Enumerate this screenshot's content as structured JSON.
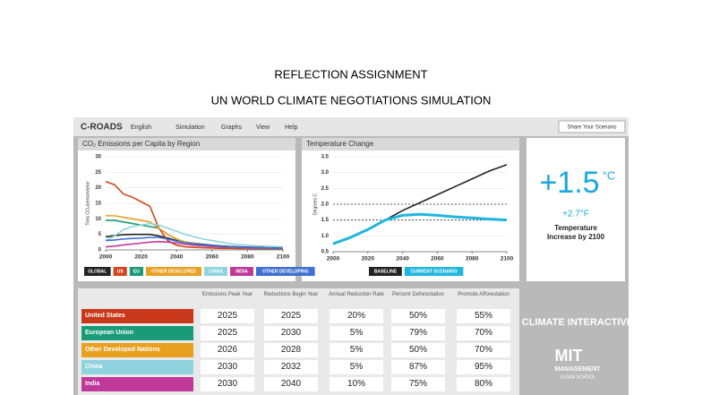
{
  "slide": {
    "title": "REFLECTION ASSIGNMENT",
    "subtitle": "UN WORLD CLIMATE NEGOTIATIONS SIMULATION"
  },
  "toolbar": {
    "app": "C-ROADS",
    "menus": [
      "English",
      "Simulation",
      "Graphs",
      "View",
      "Help"
    ],
    "share": "Share Your Scenario"
  },
  "chart_data": [
    {
      "type": "line",
      "title": "CO₂ Emissions per Capita by Region",
      "y_label": "Tons CO₂/person/year",
      "x": [
        2000,
        2005,
        2010,
        2015,
        2020,
        2025,
        2030,
        2035,
        2040,
        2045,
        2050,
        2055,
        2060,
        2065,
        2070,
        2075,
        2080,
        2085,
        2090,
        2095,
        2100
      ],
      "xlim": [
        2000,
        2100
      ],
      "xticks": [
        2000,
        2020,
        2040,
        2060,
        2080,
        2100
      ],
      "ylim": [
        0,
        30
      ],
      "yticks": [
        0,
        5,
        10,
        15,
        20,
        25,
        30
      ],
      "grid": true,
      "series": [
        {
          "name": "GLOBAL",
          "color": "#222222",
          "values": [
            4.2,
            4.6,
            4.9,
            5,
            5,
            5,
            4.5,
            3.8,
            3,
            2.5,
            2.1,
            1.8,
            1.5,
            1.3,
            1.1,
            1,
            0.9,
            0.8,
            0.7,
            0.65,
            0.6
          ]
        },
        {
          "name": "US",
          "color": "#d2451e",
          "values": [
            22,
            21,
            18,
            17,
            15.5,
            14,
            7,
            3,
            1.5,
            1,
            0.8,
            0.7,
            0.6,
            0.5,
            0.5,
            0.4,
            0.4,
            0.35,
            0.3,
            0.3,
            0.3
          ]
        },
        {
          "name": "EU",
          "color": "#1a9b78",
          "values": [
            9.5,
            9.5,
            9,
            8.5,
            8,
            7.5,
            7,
            5,
            3.5,
            2.5,
            2,
            1.5,
            1.2,
            1,
            0.9,
            0.8,
            0.7,
            0.6,
            0.6,
            0.5,
            0.5
          ]
        },
        {
          "name": "OTHER DEVELOPED",
          "color": "#e8a020",
          "values": [
            11,
            11,
            10.5,
            10,
            9.5,
            9,
            7,
            5,
            3.5,
            2.5,
            2,
            1.6,
            1.3,
            1.1,
            0.9,
            0.8,
            0.7,
            0.6,
            0.6,
            0.5,
            0.5
          ]
        },
        {
          "name": "CHINA",
          "color": "#8fd3df",
          "values": [
            3,
            4.5,
            6.5,
            7.5,
            8,
            8.5,
            8,
            7,
            6,
            5,
            4.2,
            3.5,
            3,
            2.5,
            2,
            1.7,
            1.5,
            1.3,
            1.2,
            1.1,
            1
          ]
        },
        {
          "name": "INDIA",
          "color": "#c0399a",
          "values": [
            1,
            1.2,
            1.6,
            1.9,
            2.2,
            2.5,
            2.7,
            2.5,
            2.2,
            1.8,
            1.5,
            1.3,
            1.1,
            1,
            0.9,
            0.8,
            0.7,
            0.6,
            0.6,
            0.5,
            0.5
          ]
        },
        {
          "name": "OTHER DEVELOPING",
          "color": "#3f6fd1",
          "values": [
            3,
            3.2,
            3.5,
            3.7,
            3.8,
            4,
            4,
            3.5,
            2.8,
            2.3,
            1.9,
            1.6,
            1.4,
            1.2,
            1,
            0.9,
            0.8,
            0.7,
            0.6,
            0.55,
            0.5
          ]
        }
      ]
    },
    {
      "type": "line",
      "title": "Temperature Change",
      "y_label": "Degrees C",
      "x": [
        2000,
        2010,
        2020,
        2030,
        2040,
        2050,
        2060,
        2070,
        2080,
        2090,
        2100
      ],
      "xlim": [
        2000,
        2100
      ],
      "xticks": [
        2000,
        2020,
        2040,
        2060,
        2080,
        2100
      ],
      "ylim": [
        0.5,
        3.5
      ],
      "yticks": [
        0.5,
        {
          "value": 1,
          "label": "1.0"
        },
        1.5,
        {
          "value": 2,
          "label": "2.0"
        },
        2.5,
        {
          "value": 3,
          "label": "3.0"
        },
        3.5
      ],
      "grid": true,
      "reference_lines": [
        1.5,
        2
      ],
      "series": [
        {
          "name": "BASELINE",
          "color": "#222222",
          "values": [
            0.75,
            0.95,
            1.2,
            1.5,
            1.8,
            2.05,
            2.3,
            2.55,
            2.8,
            3.05,
            3.25
          ]
        },
        {
          "name": "CURRENT SCENARIO",
          "color": "#1fb6e0",
          "values": [
            0.75,
            0.95,
            1.2,
            1.5,
            1.65,
            1.68,
            1.65,
            1.6,
            1.57,
            1.53,
            1.5
          ]
        }
      ]
    }
  ],
  "temperature": {
    "value": "+1.5",
    "unit": "°C",
    "fahrenheit": "+2.7°F",
    "label": "Temperature Increase by 2100"
  },
  "table": {
    "columns": [
      "Emissions Peak Year",
      "Reductions Begin Year",
      "Annual Reduction Rate",
      "Percent Deforestation",
      "Promote Afforestation"
    ],
    "row_colors": [
      "#c9381a",
      "#1a9b78",
      "#e8a020",
      "#8fd3df",
      "#c0399a"
    ],
    "rows": [
      [
        "United States",
        "2025",
        "2025",
        "20%",
        "50%",
        "55%"
      ],
      [
        "European Union",
        "2025",
        "2030",
        "5%",
        "79%",
        "70%"
      ],
      [
        "Other Developed Nations",
        "2026",
        "2028",
        "5%",
        "50%",
        "70%"
      ],
      [
        "China",
        "2030",
        "2032",
        "5%",
        "87%",
        "95%"
      ],
      [
        "India",
        "2030",
        "2040",
        "10%",
        "75%",
        "80%"
      ]
    ]
  },
  "logos": {
    "climate_interactive": "CLIMATE INTERACTIVE",
    "mit": "MIT",
    "management": "MANAGEMENT",
    "sloan": "SLOAN SCHOOL"
  }
}
